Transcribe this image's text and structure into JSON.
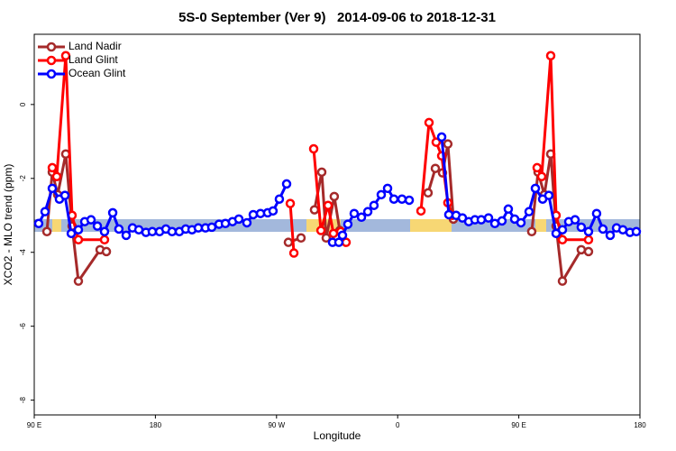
{
  "chart_data": {
    "type": "line",
    "title": "5S-0 September (Ver 9)   2014-09-06 to 2018-12-31",
    "xlabel": "Longitude",
    "ylabel": "XCO2 - MLO trend (ppm)",
    "xlim": [
      90,
      540
    ],
    "xticks": [
      {
        "value": 90,
        "label": "90 E"
      },
      180,
      {
        "value": 270,
        "label": "90 W"
      },
      0,
      {
        "value": 450,
        "label": "90 E"
      },
      {
        "value": 540,
        "label": "180"
      }
    ],
    "ylim": [
      -8.4,
      1.9
    ],
    "yticks": [
      0,
      -2,
      -4,
      -6,
      -8
    ],
    "legend": "top-left",
    "series": [
      {
        "name": "Land Nadir",
        "color": "#a52a2a",
        "x": [
          99.4,
          103.4,
          107.4,
          113.4,
          118.1,
          122.8,
          138.9,
          143.6,
          null,
          278.8,
          288.2,
          null,
          298.2,
          303.6,
          306.9,
          312.9,
          317.0,
          null,
          382.6,
          388.0,
          393.3,
          397.3,
          401.4,
          null,
          459.6,
          464.3,
          469.0,
          473.7,
          477.7,
          482.4,
          496.4,
          501.8
        ],
        "values": [
          -3.44,
          -1.83,
          -2.44,
          -1.34,
          -3.29,
          -4.78,
          -3.93,
          -3.98,
          null,
          -3.73,
          -3.61,
          null,
          -2.85,
          -1.83,
          -3.61,
          -2.49,
          -3.41,
          null,
          -2.39,
          -1.73,
          -1.85,
          -1.07,
          -3.1,
          null,
          -3.44,
          -1.83,
          -2.44,
          -1.34,
          -3.29,
          -4.78,
          -3.93,
          -3.98
        ]
      },
      {
        "name": "Land Glint",
        "color": "#ff0000",
        "x": [
          103.4,
          106.7,
          113.4,
          118.1,
          122.8,
          142.2,
          null,
          280.2,
          282.9,
          null,
          297.6,
          303.0,
          308.3,
          312.3,
          317.7,
          321.7,
          null,
          377.3,
          383.3,
          388.6,
          392.7,
          397.3,
          400.7,
          null,
          463.6,
          467.0,
          473.7,
          477.7,
          482.4,
          501.8
        ],
        "values": [
          -1.71,
          -1.95,
          1.32,
          -3.0,
          -3.66,
          -3.66,
          null,
          -2.68,
          -4.02,
          null,
          -1.2,
          -3.41,
          -2.73,
          -3.49,
          -3.44,
          -3.73,
          null,
          -2.88,
          -0.49,
          -1.02,
          -1.39,
          -2.66,
          -3.0,
          null,
          -1.71,
          -1.95,
          1.32,
          -3.0,
          -3.66,
          -3.66
        ]
      },
      {
        "name": "Ocean Glint",
        "color": "#0000ff",
        "x": [
          93.3,
          98.0,
          103.4,
          108.7,
          112.8,
          117.5,
          122.8,
          127.5,
          132.2,
          136.9,
          142.2,
          148.3,
          152.9,
          158.3,
          163.0,
          167.7,
          173.0,
          177.7,
          183.1,
          187.8,
          192.4,
          197.8,
          202.5,
          207.2,
          211.9,
          217.2,
          221.9,
          227.3,
          232.0,
          237.3,
          242.0,
          248.0,
          252.7,
          258.1,
          263.4,
          267.4,
          272.1,
          277.5,
          null,
          311.6,
          316.3,
          319.0,
          323.0,
          327.7,
          333.1,
          337.8,
          342.4,
          347.8,
          352.5,
          357.2,
          363.2,
          368.6,
          null,
          392.7,
          398.0,
          403.4,
          408.1,
          412.8,
          417.4,
          422.1,
          427.5,
          432.2,
          437.5,
          442.2,
          446.9,
          451.6,
          457.6,
          462.3,
          467.7,
          472.3,
          477.7,
          482.4,
          487.1,
          491.8,
          496.4,
          501.8,
          507.8,
          512.5,
          517.9,
          522.6,
          527.3,
          532.6,
          537.3
        ],
        "values": [
          -3.22,
          -2.9,
          -2.27,
          -2.56,
          -2.46,
          -3.49,
          -3.39,
          -3.17,
          -3.12,
          -3.29,
          -3.44,
          -2.93,
          -3.37,
          -3.54,
          -3.34,
          -3.39,
          -3.46,
          -3.44,
          -3.44,
          -3.37,
          -3.44,
          -3.44,
          -3.37,
          -3.39,
          -3.34,
          -3.34,
          -3.32,
          -3.24,
          -3.22,
          -3.17,
          -3.1,
          -3.2,
          -2.98,
          -2.95,
          -2.93,
          -2.88,
          -2.56,
          -2.15,
          null,
          -3.73,
          -3.73,
          -3.54,
          -3.24,
          -2.95,
          -3.05,
          -2.9,
          -2.73,
          -2.44,
          -2.27,
          -2.56,
          -2.56,
          -2.59,
          null,
          -0.88,
          -2.98,
          -3.0,
          -3.07,
          -3.17,
          -3.12,
          -3.12,
          -3.07,
          -3.22,
          -3.15,
          -2.83,
          -3.1,
          -3.2,
          -2.9,
          -2.27,
          -2.56,
          -2.46,
          -3.49,
          -3.39,
          -3.17,
          -3.12,
          -3.32,
          -3.44,
          -2.95,
          -3.37,
          -3.54,
          -3.34,
          -3.39,
          -3.46,
          -3.44
        ]
      }
    ]
  }
}
